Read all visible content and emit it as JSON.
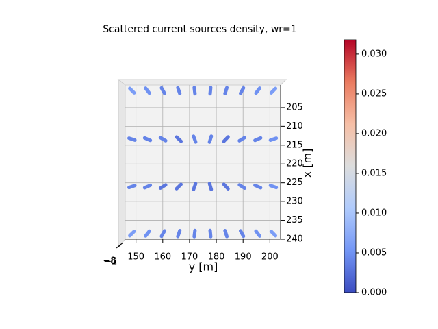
{
  "chart_data": {
    "type": "scatter",
    "title": "Scattered current sources density, wr=1",
    "y_axis": {
      "label": "y [m]",
      "lim": [
        146,
        204
      ],
      "ticks": [
        150,
        160,
        170,
        180,
        190,
        200
      ]
    },
    "x_axis": {
      "label": "x [m]",
      "lim": [
        199,
        240
      ],
      "ticks": [
        205,
        210,
        215,
        220,
        225,
        230,
        235,
        240
      ]
    },
    "z_axis": {
      "ticks": [
        {
          "value": -8,
          "label": "−8"
        },
        {
          "value": -6,
          "label": "−6"
        },
        {
          "value": -2,
          "label": "−2"
        }
      ]
    },
    "grid": true,
    "colormap": [
      "#3b4cc0",
      "#7396f5",
      "#b0cbfc",
      "#dcdddd",
      "#f6bfa6",
      "#ea7b60",
      "#b40426"
    ],
    "clim": [
      0,
      0.0318
    ],
    "colorbar_ticks": [
      {
        "value": 0,
        "label": "0.000"
      },
      {
        "value": 0.005,
        "label": "0.005"
      },
      {
        "value": 0.01,
        "label": "0.010"
      },
      {
        "value": 0.015,
        "label": "0.015"
      },
      {
        "value": 0.02,
        "label": "0.020"
      },
      {
        "value": 0.025,
        "label": "0.025"
      },
      {
        "value": 0.03,
        "label": "0.030"
      }
    ],
    "y": [
      148.5,
      154.3,
      160.1,
      166.0,
      171.9,
      177.8,
      183.6,
      189.6,
      195.5,
      201.3,
      148.5,
      154.3,
      160.1,
      166.0,
      171.9,
      177.8,
      183.6,
      189.6,
      195.5,
      201.3,
      148.5,
      154.3,
      160.1,
      166.0,
      171.9,
      177.8,
      183.6,
      189.6,
      195.5,
      201.3,
      148.5,
      154.3,
      160.1,
      166.0,
      171.9,
      177.8,
      183.6,
      189.6,
      195.5,
      201.3
    ],
    "x": [
      200.5,
      200.5,
      200.5,
      200.5,
      200.5,
      200.5,
      200.5,
      200.5,
      200.5,
      200.5,
      213.4,
      213.4,
      213.4,
      213.4,
      213.4,
      213.4,
      213.4,
      213.4,
      213.4,
      213.4,
      226.0,
      226.0,
      226.0,
      226.0,
      226.0,
      226.0,
      226.0,
      226.0,
      226.0,
      226.0,
      238.5,
      238.5,
      238.5,
      238.5,
      238.5,
      238.5,
      238.5,
      238.5,
      238.5,
      238.5
    ],
    "values": [
      0.006,
      0.005,
      0.004,
      0.004,
      0.004,
      0.004,
      0.004,
      0.004,
      0.005,
      0.006,
      0.004,
      0.004,
      0.004,
      0.003,
      0.004,
      0.004,
      0.003,
      0.004,
      0.004,
      0.005,
      0.004,
      0.004,
      0.003,
      0.003,
      0.003,
      0.003,
      0.003,
      0.004,
      0.004,
      0.005,
      0.006,
      0.005,
      0.004,
      0.004,
      0.004,
      0.004,
      0.004,
      0.004,
      0.005,
      0.006
    ]
  }
}
